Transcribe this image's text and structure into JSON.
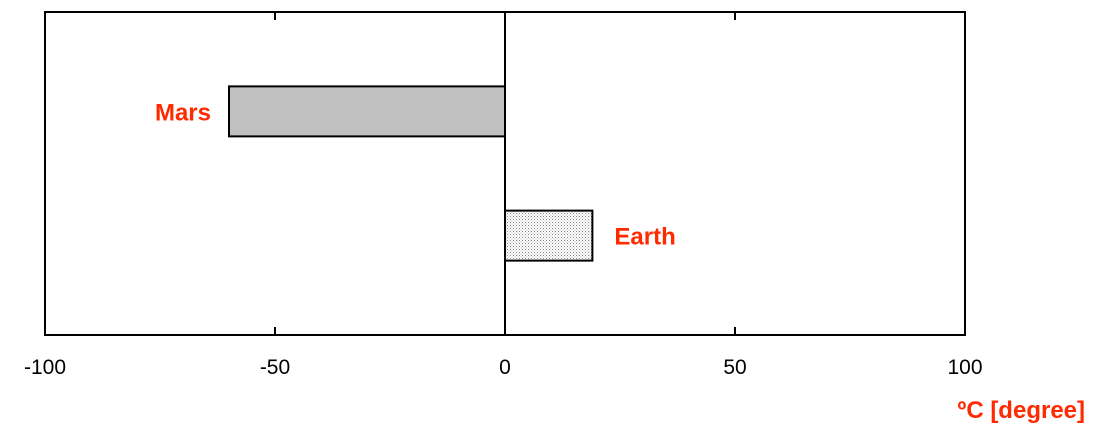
{
  "chart_data": {
    "type": "bar",
    "orientation": "horizontal",
    "categories": [
      "Mars",
      "Earth"
    ],
    "values": [
      -60,
      19
    ],
    "xlim": [
      -100,
      100
    ],
    "xticks": [
      -100,
      -50,
      0,
      50,
      100
    ],
    "xlabel": "ºC [degree]",
    "grid": false,
    "legend": "none",
    "colors": {
      "label": "#ff2a00",
      "bar_mars": "#c0c0c0",
      "bar_earth": "#e4e4e4",
      "axis": "#000000"
    }
  }
}
